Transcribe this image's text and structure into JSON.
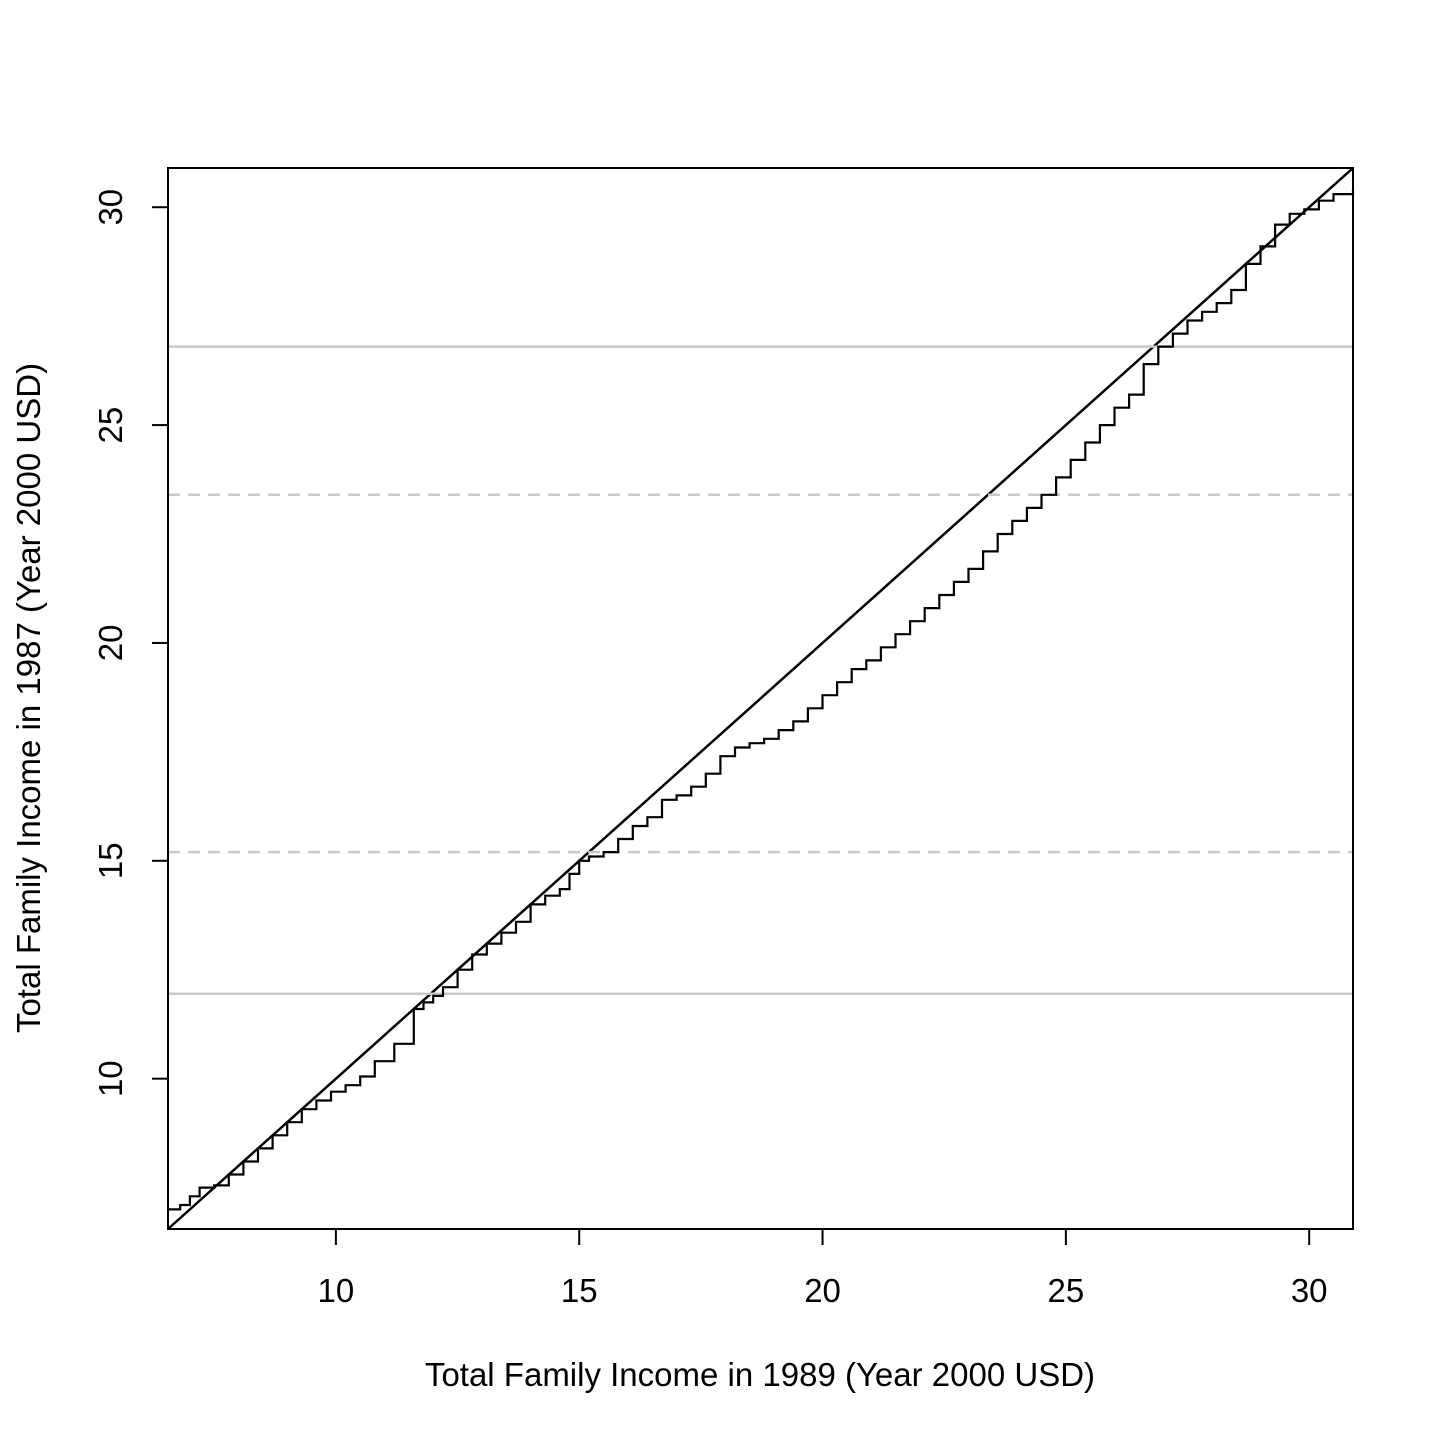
{
  "chart_data": {
    "type": "line",
    "title": "",
    "xlabel": "Total Family Income in 1989 (Year 2000 USD)",
    "ylabel": "Total Family Income in 1987 (Year 2000 USD)",
    "xlim": [
      6.55,
      30.9
    ],
    "ylim": [
      6.55,
      30.9
    ],
    "x_ticks": [
      10,
      15,
      20,
      25,
      30
    ],
    "y_ticks": [
      10,
      15,
      20,
      25,
      30
    ],
    "grid": false,
    "reference_lines": [
      {
        "type": "diagonal",
        "slope": 1,
        "intercept": 0,
        "style": "solid",
        "color": "#000000"
      },
      {
        "type": "horizontal",
        "y": 11.95,
        "style": "solid",
        "color": "#c8c8c8"
      },
      {
        "type": "horizontal",
        "y": 15.2,
        "style": "dashed",
        "color": "#c8c8c8"
      },
      {
        "type": "horizontal",
        "y": 23.4,
        "style": "dashed",
        "color": "#c8c8c8"
      },
      {
        "type": "horizontal",
        "y": 26.8,
        "style": "solid",
        "color": "#c8c8c8"
      }
    ],
    "series": [
      {
        "style": "step",
        "color": "#000000",
        "x": [
          6.55,
          6.8,
          7.0,
          7.2,
          7.5,
          7.8,
          8.1,
          8.4,
          8.7,
          9.0,
          9.3,
          9.6,
          9.9,
          10.2,
          10.5,
          10.8,
          11.2,
          11.6,
          11.8,
          12.0,
          12.2,
          12.5,
          12.8,
          13.1,
          13.4,
          13.7,
          14.0,
          14.3,
          14.6,
          14.8,
          15.0,
          15.2,
          15.5,
          15.8,
          16.1,
          16.4,
          16.7,
          17.0,
          17.3,
          17.6,
          17.9,
          18.2,
          18.5,
          18.8,
          19.1,
          19.4,
          19.7,
          20.0,
          20.3,
          20.6,
          20.9,
          21.2,
          21.5,
          21.8,
          22.1,
          22.4,
          22.7,
          23.0,
          23.3,
          23.6,
          23.9,
          24.2,
          24.5,
          24.8,
          25.1,
          25.4,
          25.7,
          26.0,
          26.3,
          26.6,
          26.9,
          27.2,
          27.5,
          27.8,
          28.1,
          28.4,
          28.7,
          29.0,
          29.3,
          29.6,
          29.9,
          30.2,
          30.5,
          30.9
        ],
        "y": [
          7.0,
          7.1,
          7.3,
          7.5,
          7.55,
          7.8,
          8.1,
          8.4,
          8.7,
          9.0,
          9.3,
          9.5,
          9.7,
          9.85,
          10.05,
          10.4,
          10.8,
          11.6,
          11.75,
          11.9,
          12.1,
          12.5,
          12.85,
          13.1,
          13.35,
          13.6,
          14.0,
          14.2,
          14.35,
          14.7,
          15.0,
          15.1,
          15.2,
          15.5,
          15.8,
          16.0,
          16.4,
          16.5,
          16.7,
          17.0,
          17.4,
          17.6,
          17.7,
          17.8,
          18.0,
          18.2,
          18.5,
          18.8,
          19.1,
          19.4,
          19.6,
          19.9,
          20.2,
          20.5,
          20.8,
          21.1,
          21.4,
          21.7,
          22.1,
          22.5,
          22.8,
          23.1,
          23.4,
          23.8,
          24.2,
          24.6,
          25.0,
          25.4,
          25.7,
          26.4,
          26.8,
          27.1,
          27.4,
          27.6,
          27.8,
          28.1,
          28.7,
          29.1,
          29.6,
          29.85,
          29.95,
          30.15,
          30.3,
          30.4
        ]
      }
    ]
  }
}
